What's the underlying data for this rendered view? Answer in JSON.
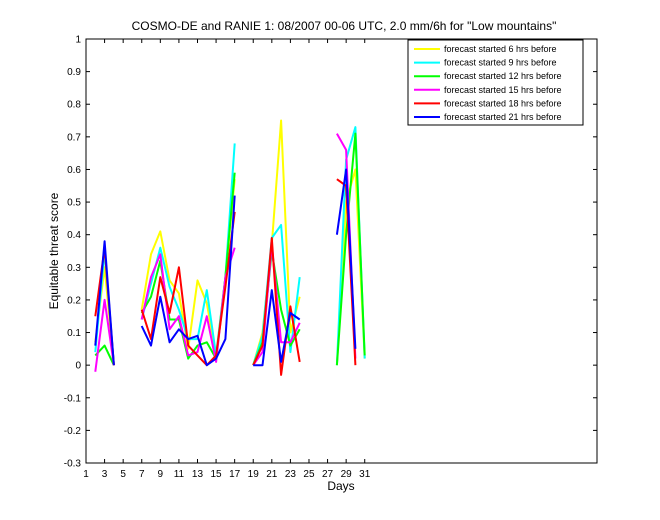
{
  "chart_data": {
    "type": "line",
    "title": "COSMO-DE and RANIE 1: 08/2007 00-06 UTC, 2.0 mm/6h for \"Low mountains\"",
    "xlabel": "Days",
    "ylabel": "Equitable threat score",
    "xlim": [
      1,
      56
    ],
    "ylim": [
      -0.3,
      1
    ],
    "xticks": [
      1,
      3,
      5,
      7,
      9,
      11,
      13,
      15,
      17,
      19,
      21,
      23,
      25,
      27,
      29,
      31
    ],
    "yticks": [
      -0.3,
      -0.2,
      -0.1,
      0,
      0.1,
      0.2,
      0.3,
      0.4,
      0.5,
      0.6,
      0.7,
      0.8,
      0.9,
      1
    ],
    "ytick_labels": [
      "-0.3",
      "-0.2",
      "-0.1",
      "0",
      "0.1",
      "0.2",
      "0.3",
      "0.4",
      "0.5",
      "0.6",
      "0.7",
      "0.8",
      "0.9",
      "1"
    ],
    "grid": false,
    "legend_position": "top-right",
    "x": [
      2,
      3,
      4,
      5,
      6,
      7,
      8,
      9,
      10,
      11,
      12,
      13,
      14,
      15,
      16,
      17,
      18,
      19,
      20,
      21,
      22,
      23,
      24,
      25,
      26,
      27,
      28,
      29,
      30,
      31
    ],
    "series": [
      {
        "name": "forecast started 6 hrs before",
        "color": "#ffff00",
        "values": [
          0.07,
          0.3,
          0.0,
          null,
          null,
          0.17,
          0.34,
          0.41,
          0.26,
          0.22,
          0.05,
          0.26,
          0.19,
          0.03,
          0.27,
          0.57,
          null,
          0.0,
          0.1,
          0.37,
          0.75,
          0.1,
          0.21,
          null,
          null,
          null,
          0.0,
          0.5,
          0.6,
          0.02
        ]
      },
      {
        "name": "forecast started 9 hrs before",
        "color": "#00ffff",
        "values": [
          0.04,
          0.35,
          0.0,
          null,
          null,
          0.14,
          0.25,
          0.36,
          0.24,
          0.17,
          0.08,
          0.08,
          0.23,
          0.03,
          0.27,
          0.68,
          null,
          0.0,
          0.09,
          0.39,
          0.43,
          0.04,
          0.27,
          null,
          null,
          null,
          0.0,
          0.63,
          0.73,
          0.02
        ]
      },
      {
        "name": "forecast started 12 hrs before",
        "color": "#00ff00",
        "values": [
          0.03,
          0.06,
          0.0,
          null,
          null,
          0.16,
          0.21,
          0.32,
          0.14,
          0.14,
          0.02,
          0.06,
          0.07,
          0.02,
          0.27,
          0.59,
          null,
          0.0,
          0.07,
          0.35,
          0.17,
          0.06,
          0.11,
          null,
          null,
          null,
          0.0,
          0.4,
          0.71,
          0.03
        ]
      },
      {
        "name": "forecast started 15 hrs before",
        "color": "#ff00ff",
        "values": [
          -0.02,
          0.2,
          0.0,
          null,
          null,
          0.14,
          0.27,
          0.34,
          0.11,
          0.15,
          0.03,
          0.04,
          0.15,
          0.01,
          0.27,
          0.36,
          null,
          0.0,
          0.04,
          0.37,
          0.07,
          0.07,
          0.13,
          null,
          null,
          null,
          0.71,
          0.66,
          0.02,
          null
        ]
      },
      {
        "name": "forecast started 18 hrs before",
        "color": "#ff0000",
        "values": [
          0.15,
          0.36,
          0.0,
          null,
          null,
          0.17,
          0.08,
          0.27,
          0.16,
          0.3,
          0.06,
          0.03,
          0.0,
          0.03,
          0.24,
          0.47,
          null,
          0.0,
          0.06,
          0.39,
          -0.03,
          0.18,
          0.01,
          null,
          null,
          null,
          0.57,
          0.55,
          0.0,
          null
        ]
      },
      {
        "name": "forecast started 21 hrs before",
        "color": "#0000ff",
        "values": [
          0.06,
          0.38,
          0.0,
          null,
          null,
          0.12,
          0.06,
          0.21,
          0.07,
          0.11,
          0.08,
          0.09,
          0.0,
          0.02,
          0.08,
          0.52,
          null,
          0.0,
          0.0,
          0.23,
          0.01,
          0.16,
          0.14,
          null,
          null,
          null,
          0.4,
          0.6,
          0.05,
          null
        ]
      }
    ]
  }
}
